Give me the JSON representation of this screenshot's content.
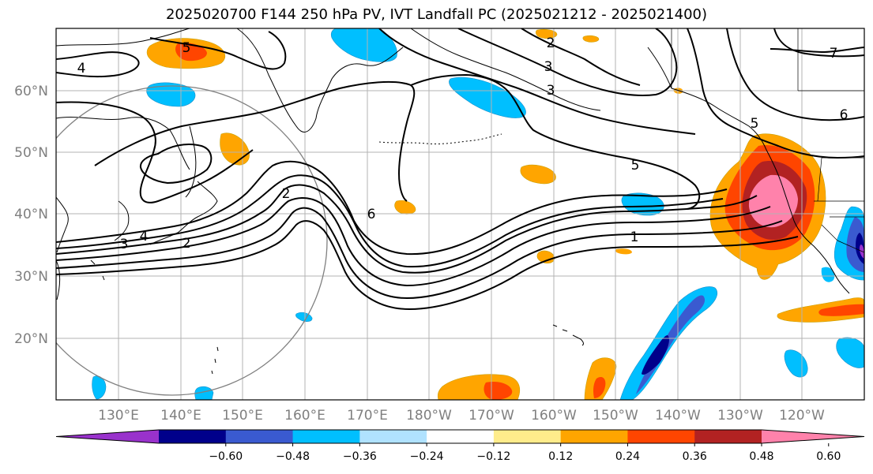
{
  "title": "2025020700 F144 250 hPa PV, IVT Landfall PC (2025021212 - 2025021400)",
  "latitude_labels": [
    "60°N",
    "50°N",
    "40°N",
    "30°N",
    "20°N"
  ],
  "longitude_labels": [
    "130°E",
    "140°E",
    "150°E",
    "160°E",
    "170°E",
    "180°W",
    "170°W",
    "160°W",
    "150°W",
    "140°W",
    "130°W",
    "120°W"
  ],
  "pv_contour_labels": [
    "4",
    "5",
    "2",
    "3",
    "3",
    "5",
    "6",
    "7",
    "5",
    "2",
    "6",
    "1",
    "4",
    "3",
    "2"
  ],
  "colorbar": {
    "tick_labels": [
      "−0.60",
      "−0.48",
      "−0.36",
      "−0.24",
      "−0.12",
      "0.12",
      "0.24",
      "0.36",
      "0.48",
      "0.60"
    ],
    "colors": [
      "#9932cc",
      "#00008b",
      "#3a5ad0",
      "#00bfff",
      "#b0e2ff",
      "#ffffff",
      "#ffec8b",
      "#ffa500",
      "#ff4500",
      "#b22222",
      "#ff82ab"
    ]
  }
}
